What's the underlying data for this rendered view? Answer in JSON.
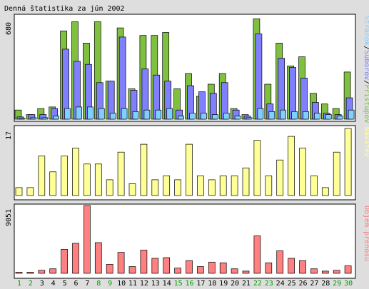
{
  "title": "Denná štatistika za jún 2002",
  "colors": {
    "background": "#dedede",
    "panel": "#ffffff",
    "hits": "#80c040",
    "files": "#8080ff",
    "pages": "#80d0ff",
    "visits": "#ffff98",
    "kbytes": "#ff8080",
    "weekday_label": "#000000",
    "weekend_label": "#00a000"
  },
  "labels": {
    "hits": "Prístupov",
    "files": "Súborov",
    "pages": "Stránok",
    "visits": "Návštev",
    "kbytes": "Objem prenosu",
    "sep": "/"
  },
  "chart_data": [
    {
      "type": "bar",
      "title": "Denná štatistika za jún 2002",
      "ymax_label": "680",
      "ylim": [
        0,
        680
      ],
      "categories": [
        "1",
        "2",
        "3",
        "4",
        "5",
        "6",
        "7",
        "8",
        "9",
        "10",
        "11",
        "12",
        "13",
        "14",
        "15",
        "16",
        "17",
        "18",
        "19",
        "20",
        "21",
        "22",
        "23",
        "24",
        "25",
        "26",
        "27",
        "28",
        "29",
        "30"
      ],
      "weekend_days": [
        "1",
        "2",
        "8",
        "9",
        "15",
        "16",
        "22",
        "23",
        "29",
        "30"
      ],
      "series": [
        {
          "name": "Prístupov",
          "values": [
            60,
            30,
            70,
            80,
            580,
            640,
            500,
            640,
            250,
            600,
            200,
            550,
            550,
            570,
            200,
            300,
            150,
            230,
            300,
            70,
            30,
            660,
            230,
            500,
            350,
            410,
            170,
            100,
            70,
            310
          ]
        },
        {
          "name": "Súborov",
          "values": [
            15,
            30,
            30,
            70,
            460,
            380,
            360,
            240,
            250,
            540,
            190,
            330,
            290,
            250,
            60,
            220,
            180,
            170,
            240,
            60,
            20,
            560,
            100,
            400,
            340,
            270,
            110,
            40,
            30,
            140
          ]
        },
        {
          "name": "Stránok",
          "values": [
            5,
            10,
            10,
            20,
            70,
            80,
            80,
            70,
            40,
            70,
            50,
            60,
            60,
            70,
            20,
            40,
            40,
            30,
            40,
            20,
            10,
            70,
            50,
            60,
            50,
            50,
            40,
            30,
            20,
            60
          ]
        }
      ]
    },
    {
      "type": "bar",
      "ymax_label": "17",
      "ylim": [
        0,
        17
      ],
      "categories": [
        "1",
        "2",
        "3",
        "4",
        "5",
        "6",
        "7",
        "8",
        "9",
        "10",
        "11",
        "12",
        "13",
        "14",
        "15",
        "16",
        "17",
        "18",
        "19",
        "20",
        "21",
        "22",
        "23",
        "24",
        "25",
        "26",
        "27",
        "28",
        "29",
        "30"
      ],
      "series": [
        {
          "name": "Návštev",
          "values": [
            2,
            2,
            10,
            6,
            10,
            12,
            8,
            8,
            4,
            11,
            3,
            13,
            4,
            5,
            4,
            13,
            5,
            4,
            5,
            5,
            7,
            14,
            5,
            9,
            15,
            12,
            5,
            2,
            11,
            17
          ]
        }
      ]
    },
    {
      "type": "bar",
      "ymax_label": "9051",
      "ylim": [
        0,
        9051
      ],
      "categories": [
        "1",
        "2",
        "3",
        "4",
        "5",
        "6",
        "7",
        "8",
        "9",
        "10",
        "11",
        "12",
        "13",
        "14",
        "15",
        "16",
        "17",
        "18",
        "19",
        "20",
        "21",
        "22",
        "23",
        "24",
        "25",
        "26",
        "27",
        "28",
        "29",
        "30"
      ],
      "series": [
        {
          "name": "Objem prenosu",
          "values": [
            150,
            150,
            400,
            600,
            3200,
            4000,
            9051,
            4100,
            1200,
            2800,
            900,
            3100,
            2000,
            2100,
            700,
            1700,
            900,
            1500,
            1400,
            600,
            300,
            5000,
            1400,
            3000,
            2000,
            1700,
            600,
            300,
            400,
            1000
          ]
        }
      ]
    }
  ]
}
